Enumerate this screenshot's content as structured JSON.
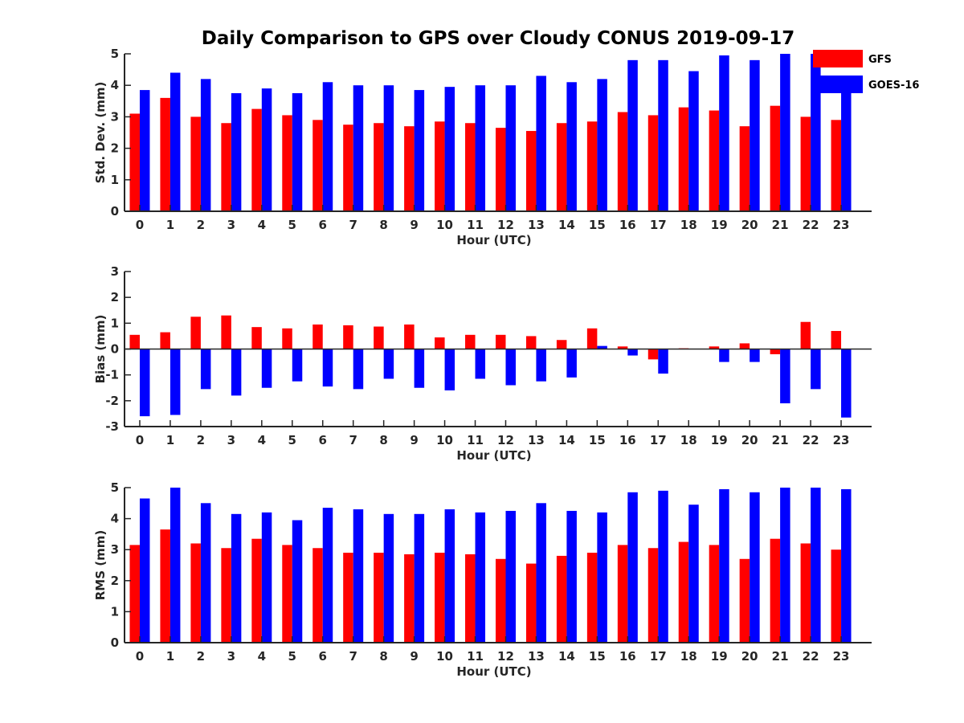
{
  "title": "Daily Comparison to GPS over Cloudy CONUS 2019-09-17",
  "colors": {
    "GFS": "#ff0000",
    "GOES-16": "#0000ff",
    "axis": "#262626"
  },
  "legend": {
    "placement": "top-right",
    "items": [
      "GFS",
      "GOES-16"
    ]
  },
  "chart_data": [
    {
      "type": "bar",
      "xlabel": "Hour (UTC)",
      "ylabel": "Std. Dev. (mm)",
      "ylim": [
        0,
        5
      ],
      "yticks": [
        0,
        1,
        2,
        3,
        4,
        5
      ],
      "categories": [
        "0",
        "1",
        "2",
        "3",
        "4",
        "5",
        "6",
        "7",
        "8",
        "9",
        "10",
        "11",
        "12",
        "13",
        "14",
        "15",
        "16",
        "17",
        "18",
        "19",
        "20",
        "21",
        "22",
        "23"
      ],
      "series": [
        {
          "name": "GFS",
          "values": [
            3.1,
            3.6,
            3.0,
            2.8,
            3.25,
            3.05,
            2.9,
            2.75,
            2.8,
            2.7,
            2.85,
            2.8,
            2.65,
            2.55,
            2.8,
            2.85,
            3.15,
            3.05,
            3.3,
            3.2,
            2.7,
            3.35,
            3.0,
            2.9
          ]
        },
        {
          "name": "GOES-16",
          "values": [
            3.85,
            4.4,
            4.2,
            3.75,
            3.9,
            3.75,
            4.1,
            4.0,
            4.0,
            3.85,
            3.95,
            4.0,
            4.0,
            4.3,
            4.1,
            4.2,
            4.8,
            4.8,
            4.45,
            4.95,
            4.8,
            5.0,
            5.0,
            4.0
          ]
        }
      ]
    },
    {
      "type": "bar",
      "xlabel": "Hour (UTC)",
      "ylabel": "Bias (mm)",
      "ylim": [
        -3,
        3
      ],
      "yticks": [
        -3,
        -2,
        -1,
        0,
        1,
        2,
        3
      ],
      "categories": [
        "0",
        "1",
        "2",
        "3",
        "4",
        "5",
        "6",
        "7",
        "8",
        "9",
        "10",
        "11",
        "12",
        "13",
        "14",
        "15",
        "16",
        "17",
        "18",
        "19",
        "20",
        "21",
        "22",
        "23"
      ],
      "series": [
        {
          "name": "GFS",
          "values": [
            0.55,
            0.65,
            1.25,
            1.3,
            0.85,
            0.8,
            0.95,
            0.92,
            0.87,
            0.95,
            0.45,
            0.55,
            0.55,
            0.5,
            0.35,
            0.8,
            0.1,
            -0.4,
            0.03,
            0.1,
            0.22,
            -0.2,
            1.05,
            0.7
          ]
        },
        {
          "name": "GOES-16",
          "values": [
            -2.6,
            -2.55,
            -1.55,
            -1.8,
            -1.5,
            -1.25,
            -1.45,
            -1.55,
            -1.15,
            -1.5,
            -1.6,
            -1.15,
            -1.4,
            -1.25,
            -1.1,
            0.12,
            -0.25,
            -0.95,
            0.0,
            -0.5,
            -0.5,
            -2.1,
            -1.55,
            -2.65
          ]
        }
      ]
    },
    {
      "type": "bar",
      "xlabel": "Hour (UTC)",
      "ylabel": "RMS (mm)",
      "ylim": [
        0,
        5
      ],
      "yticks": [
        0,
        1,
        2,
        3,
        4,
        5
      ],
      "categories": [
        "0",
        "1",
        "2",
        "3",
        "4",
        "5",
        "6",
        "7",
        "8",
        "9",
        "10",
        "11",
        "12",
        "13",
        "14",
        "15",
        "16",
        "17",
        "18",
        "19",
        "20",
        "21",
        "22",
        "23"
      ],
      "series": [
        {
          "name": "GFS",
          "values": [
            3.15,
            3.65,
            3.2,
            3.05,
            3.35,
            3.15,
            3.05,
            2.9,
            2.9,
            2.85,
            2.9,
            2.85,
            2.7,
            2.55,
            2.8,
            2.9,
            3.15,
            3.05,
            3.25,
            3.15,
            2.7,
            3.35,
            3.2,
            3.0
          ]
        },
        {
          "name": "GOES-16",
          "values": [
            4.65,
            5.0,
            4.5,
            4.15,
            4.2,
            3.95,
            4.35,
            4.3,
            4.15,
            4.15,
            4.3,
            4.2,
            4.25,
            4.5,
            4.25,
            4.2,
            4.85,
            4.9,
            4.45,
            4.95,
            4.85,
            5.0,
            5.0,
            4.95
          ]
        }
      ]
    }
  ]
}
